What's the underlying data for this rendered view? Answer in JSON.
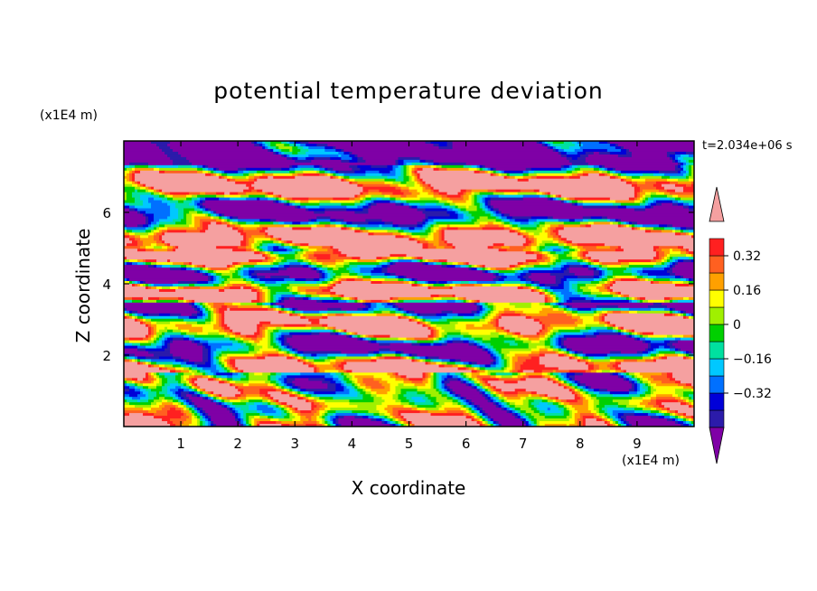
{
  "chart_data": {
    "type": "heatmap",
    "title": "potential temperature deviation",
    "xlabel": "X coordinate",
    "ylabel": "Z coordinate",
    "x_unit": "(x1E4 m)",
    "y_unit": "(x1E4 m)",
    "annotation": "t=2.034e+06 s",
    "xlim": [
      0,
      10
    ],
    "ylim": [
      0,
      8
    ],
    "xticks": [
      "1",
      "2",
      "3",
      "4",
      "5",
      "6",
      "7",
      "8",
      "9"
    ],
    "yticks": [
      "2",
      "4",
      "6"
    ],
    "colorbar": {
      "levels": [
        -0.48,
        -0.4,
        -0.32,
        -0.24,
        -0.16,
        -0.08,
        0,
        0.08,
        0.16,
        0.24,
        0.32,
        0.4,
        0.48
      ],
      "colors": [
        "#7f00a6",
        "#2b1baa",
        "#0000d8",
        "#0070ff",
        "#00c8ff",
        "#00e0a0",
        "#00d000",
        "#a0f000",
        "#ffff00",
        "#ffa000",
        "#ff6020",
        "#ff2020",
        "#f5a0a0"
      ],
      "labels": [
        "0.32",
        "0.16",
        "0",
        "−0.16",
        "−0.32"
      ],
      "label_values": [
        0.32,
        0.16,
        0,
        -0.16,
        -0.32
      ],
      "extend": "both"
    },
    "bands": [
      {
        "z": [
          7.35,
          8.0
        ],
        "band": "upper-purple"
      },
      {
        "z": [
          6.0,
          7.35
        ],
        "band": "pink-purple-layers"
      },
      {
        "z": [
          5.0,
          6.0
        ],
        "band": "pink-purple-layers"
      },
      {
        "z": [
          3.5,
          5.0
        ],
        "band": "mixed-turbulent"
      },
      {
        "z": [
          1.5,
          3.5
        ],
        "band": "mixed-turbulent"
      },
      {
        "z": [
          0.0,
          1.5
        ],
        "band": "boundary-layer-eddies"
      }
    ]
  }
}
